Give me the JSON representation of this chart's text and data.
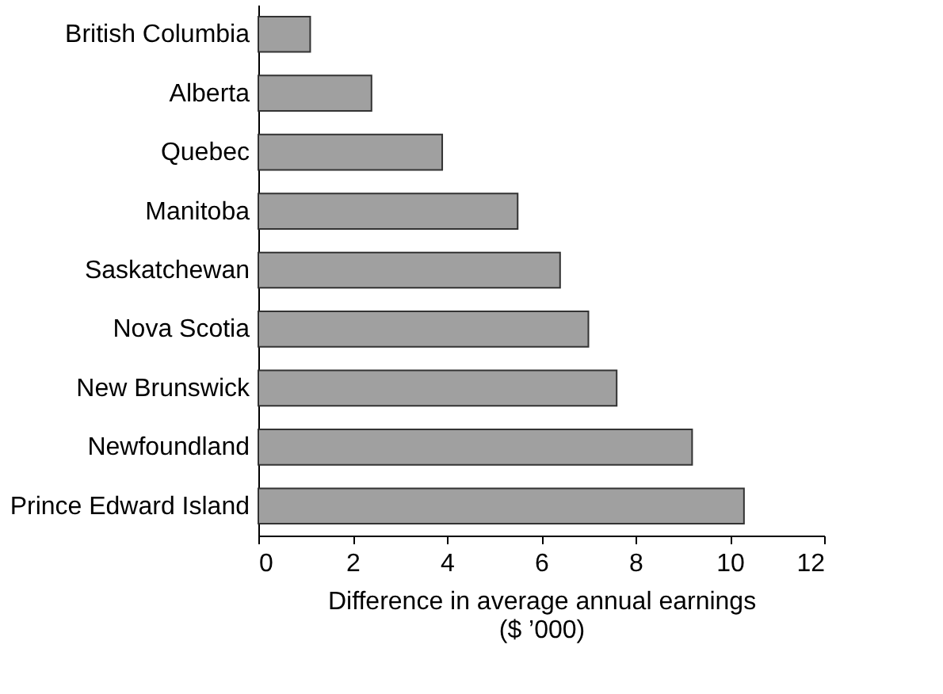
{
  "chart_data": {
    "type": "bar",
    "orientation": "horizontal",
    "xlabel": "Difference in average annual earnings\n($ ’000)",
    "categories": [
      "British Columbia",
      "Alberta",
      "Quebec",
      "Manitoba",
      "Saskatchewan",
      "Nova Scotia",
      "New Brunswick",
      "Newfoundland",
      "Prince Edward Island"
    ],
    "values": [
      1.1,
      2.4,
      3.9,
      5.5,
      6.4,
      7.0,
      7.6,
      9.2,
      10.3
    ],
    "color": "#a0a0a0",
    "xlim": [
      0,
      12
    ],
    "xticks": [
      0,
      2,
      4,
      6,
      8,
      10,
      12
    ],
    "grid": false
  }
}
